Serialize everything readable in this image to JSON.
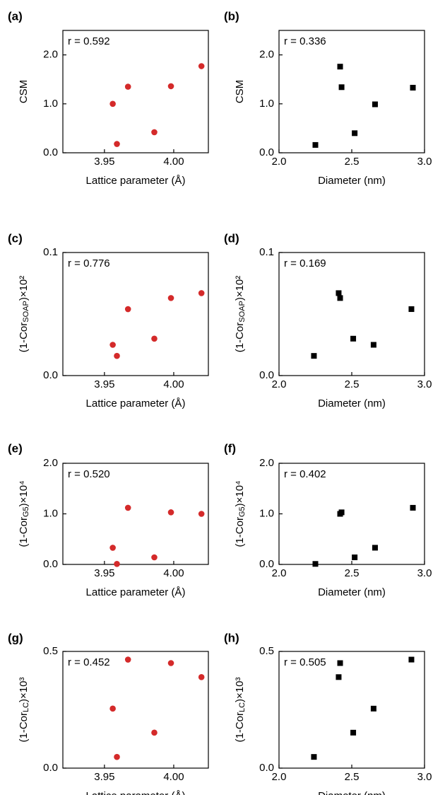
{
  "chart_data": [
    {
      "type": "scatter",
      "panel_label": "(a)",
      "annotation": "r = 0.592",
      "xlabel": "Lattice parameter (Å)",
      "ylabel": "CSM",
      "ylabel_sub": "",
      "ylabel_suffix": "",
      "xlim": [
        3.92,
        4.025
      ],
      "ylim": [
        0,
        2.5
      ],
      "xticks": [
        3.95,
        4.0
      ],
      "xticklabels": [
        "3.95",
        "4.00"
      ],
      "yticks": [
        0,
        1,
        2
      ],
      "yticklabels": [
        "0.0",
        "1.0",
        "2.0"
      ],
      "marker": "circle",
      "color": "#d42a2a",
      "points": [
        [
          3.956,
          1.0
        ],
        [
          3.959,
          0.18
        ],
        [
          3.967,
          1.35
        ],
        [
          3.986,
          0.42
        ],
        [
          3.998,
          1.36
        ],
        [
          4.02,
          1.77
        ]
      ]
    },
    {
      "type": "scatter",
      "panel_label": "(b)",
      "annotation": "r = 0.336",
      "xlabel": "Diameter (nm)",
      "ylabel": "CSM",
      "ylabel_sub": "",
      "ylabel_suffix": "",
      "xlim": [
        2.0,
        3.0
      ],
      "ylim": [
        0,
        2.5
      ],
      "xticks": [
        2.0,
        2.5,
        3.0
      ],
      "xticklabels": [
        "2.0",
        "2.5",
        "3.0"
      ],
      "yticks": [
        0,
        1,
        2
      ],
      "yticklabels": [
        "0.0",
        "1.0",
        "2.0"
      ],
      "marker": "square",
      "color": "#000000",
      "points": [
        [
          2.25,
          0.16
        ],
        [
          2.42,
          1.76
        ],
        [
          2.43,
          1.34
        ],
        [
          2.52,
          0.4
        ],
        [
          2.66,
          0.99
        ],
        [
          2.92,
          1.33
        ]
      ]
    },
    {
      "type": "scatter",
      "panel_label": "(c)",
      "annotation": "r = 0.776",
      "xlabel": "Lattice parameter (Å)",
      "ylabel": "(1-Cor",
      "ylabel_sub": "SOAP",
      "ylabel_suffix": ")×10²",
      "xlim": [
        3.92,
        4.025
      ],
      "ylim": [
        0,
        0.1
      ],
      "xticks": [
        3.95,
        4.0
      ],
      "xticklabels": [
        "3.95",
        "4.00"
      ],
      "yticks": [
        0,
        0.1
      ],
      "yticklabels": [
        "0.0",
        "0.1"
      ],
      "marker": "circle",
      "color": "#d42a2a",
      "points": [
        [
          3.956,
          0.025
        ],
        [
          3.959,
          0.016
        ],
        [
          3.967,
          0.054
        ],
        [
          3.986,
          0.03
        ],
        [
          3.998,
          0.063
        ],
        [
          4.02,
          0.067
        ]
      ]
    },
    {
      "type": "scatter",
      "panel_label": "(d)",
      "annotation": "r = 0.169",
      "xlabel": "Diameter (nm)",
      "ylabel": "(1-Cor",
      "ylabel_sub": "SOAP",
      "ylabel_suffix": ")×10²",
      "xlim": [
        2.0,
        3.0
      ],
      "ylim": [
        0,
        0.1
      ],
      "xticks": [
        2.0,
        2.5,
        3.0
      ],
      "xticklabels": [
        "2.0",
        "2.5",
        "3.0"
      ],
      "yticks": [
        0,
        0.1
      ],
      "yticklabels": [
        "0.0",
        "0.1"
      ],
      "marker": "square",
      "color": "#000000",
      "points": [
        [
          2.24,
          0.016
        ],
        [
          2.41,
          0.067
        ],
        [
          2.42,
          0.063
        ],
        [
          2.51,
          0.03
        ],
        [
          2.65,
          0.025
        ],
        [
          2.91,
          0.054
        ]
      ]
    },
    {
      "type": "scatter",
      "panel_label": "(e)",
      "annotation": "r = 0.520",
      "xlabel": "Lattice parameter (Å)",
      "ylabel": "(1-Cor",
      "ylabel_sub": "G5",
      "ylabel_suffix": ")×10⁴",
      "xlim": [
        3.92,
        4.025
      ],
      "ylim": [
        0,
        2.0
      ],
      "xticks": [
        3.95,
        4.0
      ],
      "xticklabels": [
        "3.95",
        "4.00"
      ],
      "yticks": [
        0,
        1,
        2
      ],
      "yticklabels": [
        "0.0",
        "1.0",
        "2.0"
      ],
      "marker": "circle",
      "color": "#d42a2a",
      "points": [
        [
          3.956,
          0.33
        ],
        [
          3.959,
          0.01
        ],
        [
          3.967,
          1.12
        ],
        [
          3.986,
          0.14
        ],
        [
          3.998,
          1.03
        ],
        [
          4.02,
          1.0
        ]
      ]
    },
    {
      "type": "scatter",
      "panel_label": "(f)",
      "annotation": "r = 0.402",
      "xlabel": "Diameter (nm)",
      "ylabel": "(1-Cor",
      "ylabel_sub": "G5",
      "ylabel_suffix": ")×10⁴",
      "xlim": [
        2.0,
        3.0
      ],
      "ylim": [
        0,
        2.0
      ],
      "xticks": [
        2.0,
        2.5,
        3.0
      ],
      "xticklabels": [
        "2.0",
        "2.5",
        "3.0"
      ],
      "yticks": [
        0,
        1,
        2
      ],
      "yticklabels": [
        "0.0",
        "1.0",
        "2.0"
      ],
      "marker": "square",
      "color": "#000000",
      "points": [
        [
          2.25,
          0.01
        ],
        [
          2.42,
          1.0
        ],
        [
          2.43,
          1.03
        ],
        [
          2.52,
          0.14
        ],
        [
          2.66,
          0.33
        ],
        [
          2.92,
          1.12
        ]
      ]
    },
    {
      "type": "scatter",
      "panel_label": "(g)",
      "annotation": "r = 0.452",
      "xlabel": "Lattice parameter (Å)",
      "ylabel": "(1-Cor",
      "ylabel_sub": "LC",
      "ylabel_suffix": ")×10³",
      "xlim": [
        3.92,
        4.025
      ],
      "ylim": [
        0,
        0.5
      ],
      "xticks": [
        3.95,
        4.0
      ],
      "xticklabels": [
        "3.95",
        "4.00"
      ],
      "yticks": [
        0,
        0.5
      ],
      "yticklabels": [
        "0.0",
        "0.5"
      ],
      "marker": "circle",
      "color": "#d42a2a",
      "points": [
        [
          3.956,
          0.255
        ],
        [
          3.959,
          0.048
        ],
        [
          3.967,
          0.465
        ],
        [
          3.986,
          0.152
        ],
        [
          3.998,
          0.45
        ],
        [
          4.02,
          0.39
        ]
      ]
    },
    {
      "type": "scatter",
      "panel_label": "(h)",
      "annotation": "r = 0.505",
      "xlabel": "Diameter (nm)",
      "ylabel": "(1-Cor",
      "ylabel_sub": "LC",
      "ylabel_suffix": ")×10³",
      "xlim": [
        2.0,
        3.0
      ],
      "ylim": [
        0,
        0.5
      ],
      "xticks": [
        2.0,
        2.5,
        3.0
      ],
      "xticklabels": [
        "2.0",
        "2.5",
        "3.0"
      ],
      "yticks": [
        0,
        0.5
      ],
      "yticklabels": [
        "0.0",
        "0.5"
      ],
      "marker": "square",
      "color": "#000000",
      "points": [
        [
          2.24,
          0.048
        ],
        [
          2.41,
          0.39
        ],
        [
          2.42,
          0.45
        ],
        [
          2.51,
          0.152
        ],
        [
          2.65,
          0.255
        ],
        [
          2.91,
          0.465
        ]
      ]
    }
  ]
}
